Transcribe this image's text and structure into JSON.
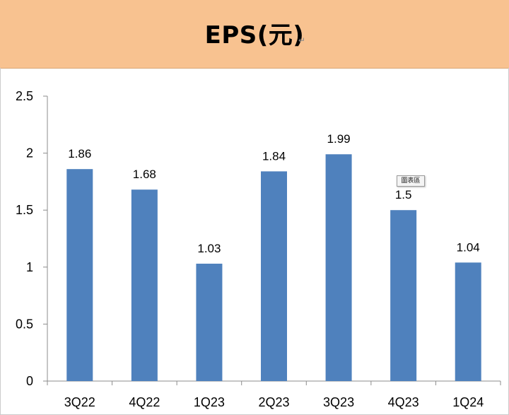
{
  "header": {
    "title": "EPS(元)",
    "mark": "↵"
  },
  "tooltip": {
    "text": "圖表區"
  },
  "colors": {
    "header_bg": "#f8c290",
    "bar": "#4f81bd",
    "axis": "#8c8c8c"
  },
  "chart_data": {
    "type": "bar",
    "title": "EPS(元)",
    "xlabel": "",
    "ylabel": "",
    "categories": [
      "3Q22",
      "4Q22",
      "1Q23",
      "2Q23",
      "3Q23",
      "4Q23",
      "1Q24"
    ],
    "values": [
      1.86,
      1.68,
      1.03,
      1.84,
      1.99,
      1.5,
      1.04
    ],
    "value_labels": [
      "1.86",
      "1.68",
      "1.03",
      "1.84",
      "1.99",
      "1.5",
      "1.04"
    ],
    "ylim": [
      0,
      2.5
    ],
    "yticks": [
      0,
      0.5,
      1,
      1.5,
      2,
      2.5
    ],
    "ytick_labels": [
      "0",
      "0.5",
      "1",
      "1.5",
      "2",
      "2.5"
    ],
    "grid": false,
    "legend": "none"
  }
}
